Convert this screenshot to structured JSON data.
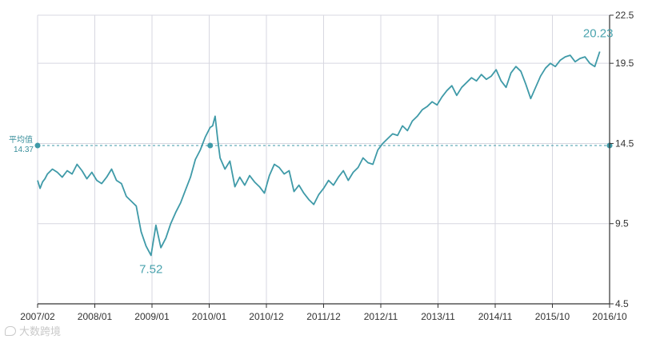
{
  "chart_data": {
    "type": "line",
    "title": "",
    "xlabel": "",
    "ylabel": "",
    "x_tick_labels": [
      "2007/02",
      "2008/01",
      "2009/01",
      "2010/01",
      "2010/12",
      "2011/12",
      "2012/11",
      "2013/11",
      "2014/11",
      "2015/10",
      "2016/10"
    ],
    "y_tick_labels": [
      "22.5",
      "19.5",
      "14.5",
      "9.5",
      "4.5"
    ],
    "y_ticks": [
      22.5,
      19.5,
      14.5,
      9.5,
      4.5
    ],
    "ylim": [
      4.5,
      22.5
    ],
    "x_range_months": [
      0,
      116
    ],
    "grid": true,
    "average": {
      "label": "平均值",
      "value_label": "14.37",
      "value": 14.37
    },
    "annotations": [
      {
        "text": "7.52",
        "x": 23,
        "y": 7.52,
        "kind": "min"
      },
      {
        "text": "20.23",
        "x": 114,
        "y": 20.23,
        "kind": "max"
      }
    ],
    "colors": {
      "line": "#3f9aa8",
      "avg": "#3f9aa8",
      "annotation": "#4aa3ae",
      "grid": "#d7d7e0",
      "axis": "#333333"
    },
    "series": [
      {
        "values": [
          [
            0,
            12.2
          ],
          [
            0.5,
            11.7
          ],
          [
            1,
            12.1
          ],
          [
            1.5,
            12.3
          ],
          [
            2,
            12.6
          ],
          [
            3,
            12.9
          ],
          [
            4,
            12.7
          ],
          [
            5,
            12.4
          ],
          [
            6,
            12.8
          ],
          [
            7,
            12.6
          ],
          [
            8,
            13.2
          ],
          [
            9,
            12.8
          ],
          [
            10,
            12.3
          ],
          [
            11,
            12.7
          ],
          [
            12,
            12.2
          ],
          [
            13,
            12.0
          ],
          [
            14,
            12.4
          ],
          [
            15,
            12.9
          ],
          [
            16,
            12.2
          ],
          [
            17,
            12.0
          ],
          [
            18,
            11.2
          ],
          [
            19,
            10.9
          ],
          [
            20,
            10.6
          ],
          [
            21,
            9.0
          ],
          [
            22,
            8.1
          ],
          [
            23,
            7.52
          ],
          [
            24,
            9.4
          ],
          [
            25,
            8.0
          ],
          [
            26,
            8.6
          ],
          [
            27,
            9.5
          ],
          [
            28,
            10.2
          ],
          [
            29,
            10.8
          ],
          [
            30,
            11.6
          ],
          [
            31,
            12.4
          ],
          [
            32,
            13.5
          ],
          [
            33,
            14.1
          ],
          [
            34,
            14.9
          ],
          [
            35,
            15.5
          ],
          [
            35.5,
            15.6
          ],
          [
            36,
            16.2
          ],
          [
            36.5,
            14.8
          ],
          [
            37,
            13.6
          ],
          [
            38,
            12.9
          ],
          [
            39,
            13.4
          ],
          [
            40,
            11.8
          ],
          [
            41,
            12.4
          ],
          [
            42,
            11.9
          ],
          [
            43,
            12.5
          ],
          [
            44,
            12.1
          ],
          [
            45,
            11.8
          ],
          [
            46,
            11.4
          ],
          [
            47,
            12.5
          ],
          [
            48,
            13.2
          ],
          [
            49,
            13.0
          ],
          [
            50,
            12.6
          ],
          [
            51,
            12.8
          ],
          [
            52,
            11.5
          ],
          [
            53,
            11.9
          ],
          [
            54,
            11.4
          ],
          [
            55,
            11.0
          ],
          [
            56,
            10.7
          ],
          [
            57,
            11.3
          ],
          [
            58,
            11.7
          ],
          [
            59,
            12.2
          ],
          [
            60,
            11.9
          ],
          [
            61,
            12.4
          ],
          [
            62,
            12.8
          ],
          [
            63,
            12.2
          ],
          [
            64,
            12.7
          ],
          [
            65,
            13.0
          ],
          [
            66,
            13.6
          ],
          [
            67,
            13.3
          ],
          [
            68,
            13.2
          ],
          [
            69,
            14.1
          ],
          [
            70,
            14.5
          ],
          [
            71,
            14.8
          ],
          [
            72,
            15.1
          ],
          [
            73,
            15.0
          ],
          [
            74,
            15.6
          ],
          [
            75,
            15.3
          ],
          [
            76,
            15.9
          ],
          [
            77,
            16.2
          ],
          [
            78,
            16.6
          ],
          [
            79,
            16.8
          ],
          [
            80,
            17.1
          ],
          [
            81,
            16.9
          ],
          [
            82,
            17.4
          ],
          [
            83,
            17.8
          ],
          [
            84,
            18.1
          ],
          [
            85,
            17.5
          ],
          [
            86,
            18.0
          ],
          [
            87,
            18.3
          ],
          [
            88,
            18.6
          ],
          [
            89,
            18.4
          ],
          [
            90,
            18.8
          ],
          [
            91,
            18.5
          ],
          [
            92,
            18.7
          ],
          [
            93,
            19.1
          ],
          [
            94,
            18.4
          ],
          [
            95,
            18.0
          ],
          [
            96,
            18.9
          ],
          [
            97,
            19.3
          ],
          [
            98,
            19.0
          ],
          [
            99,
            18.2
          ],
          [
            100,
            17.3
          ],
          [
            101,
            18.0
          ],
          [
            102,
            18.7
          ],
          [
            103,
            19.2
          ],
          [
            104,
            19.5
          ],
          [
            105,
            19.3
          ],
          [
            106,
            19.7
          ],
          [
            107,
            19.9
          ],
          [
            108,
            20.0
          ],
          [
            109,
            19.6
          ],
          [
            110,
            19.8
          ],
          [
            111,
            19.9
          ],
          [
            112,
            19.5
          ],
          [
            113,
            19.3
          ],
          [
            114,
            20.23
          ]
        ]
      }
    ]
  }
}
